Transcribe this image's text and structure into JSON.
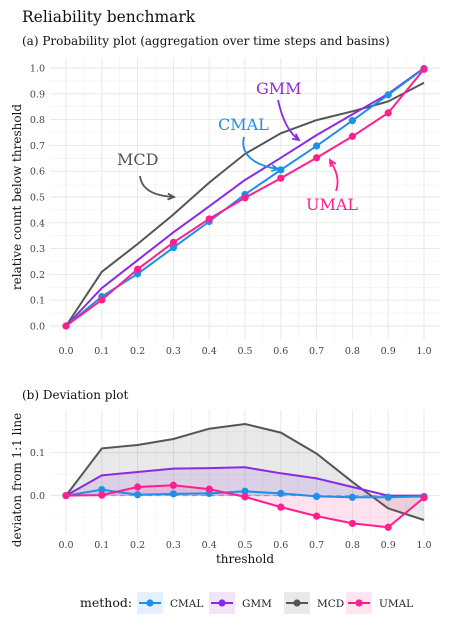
{
  "title": "Reliability benchmark",
  "colors": {
    "CMAL": "#1f8fe8",
    "GMM": "#8a2be2",
    "MCD": "#555555",
    "UMAL": "#ff1f8e"
  },
  "legend": {
    "title": "method:",
    "position": "bottom"
  },
  "chart_data": [
    {
      "type": "line",
      "title": "(a) Probability plot (aggregation over time steps and basins)",
      "xlabel": "",
      "ylabel": "relative count below threshold",
      "x": [
        0.0,
        0.1,
        0.2,
        0.3,
        0.4,
        0.5,
        0.6,
        0.7,
        0.8,
        0.9,
        1.0
      ],
      "xticks": [
        "0.0",
        "0.1",
        "0.2",
        "0.3",
        "0.4",
        "0.5",
        "0.6",
        "0.7",
        "0.8",
        "0.9",
        "1.0"
      ],
      "yticks": [
        "0.0",
        "0.1",
        "0.2",
        "0.3",
        "0.4",
        "0.5",
        "0.6",
        "0.7",
        "0.8",
        "0.9",
        "1.0"
      ],
      "xlim": [
        0,
        1.0
      ],
      "ylim": [
        0,
        1.0
      ],
      "grid": true,
      "series": [
        {
          "name": "CMAL",
          "values": [
            0.0,
            0.114,
            0.202,
            0.304,
            0.405,
            0.51,
            0.605,
            0.698,
            0.796,
            0.896,
            0.998
          ],
          "markers": true
        },
        {
          "name": "GMM",
          "values": [
            0.0,
            0.147,
            0.255,
            0.363,
            0.464,
            0.566,
            0.652,
            0.74,
            0.82,
            0.9,
            1.0
          ],
          "markers": false
        },
        {
          "name": "MCD",
          "values": [
            0.0,
            0.21,
            0.318,
            0.432,
            0.556,
            0.667,
            0.747,
            0.798,
            0.832,
            0.87,
            0.943
          ],
          "markers": false
        },
        {
          "name": "UMAL",
          "values": [
            0.0,
            0.101,
            0.22,
            0.324,
            0.415,
            0.497,
            0.573,
            0.652,
            0.735,
            0.826,
            0.995
          ],
          "markers": true
        }
      ],
      "annotations": [
        {
          "text": "MCD",
          "series": "MCD"
        },
        {
          "text": "CMAL",
          "series": "CMAL"
        },
        {
          "text": "GMM",
          "series": "GMM"
        },
        {
          "text": "UMAL",
          "series": "UMAL"
        }
      ]
    },
    {
      "type": "area",
      "title": "(b) Deviation plot",
      "xlabel": "threshold",
      "ylabel": "deviaton from 1:1 line",
      "x": [
        0.0,
        0.1,
        0.2,
        0.3,
        0.4,
        0.5,
        0.6,
        0.7,
        0.8,
        0.9,
        1.0
      ],
      "xticks": [
        "0.0",
        "0.1",
        "0.2",
        "0.3",
        "0.4",
        "0.5",
        "0.6",
        "0.7",
        "0.8",
        "0.9",
        "1.0"
      ],
      "yticks": [
        "0.0",
        "0.1"
      ],
      "xlim": [
        0,
        1.0
      ],
      "ylim": [
        -0.085,
        0.195
      ],
      "reference_line": 0.0,
      "grid": true,
      "series": [
        {
          "name": "CMAL",
          "values": [
            0.0,
            0.014,
            0.002,
            0.004,
            0.005,
            0.01,
            0.005,
            -0.002,
            -0.004,
            -0.004,
            -0.002
          ],
          "markers": true
        },
        {
          "name": "GMM",
          "values": [
            0.0,
            0.047,
            0.055,
            0.063,
            0.064,
            0.066,
            0.052,
            0.04,
            0.02,
            0.0,
            0.0
          ],
          "markers": false
        },
        {
          "name": "MCD",
          "values": [
            0.0,
            0.11,
            0.118,
            0.132,
            0.156,
            0.167,
            0.147,
            0.098,
            0.032,
            -0.03,
            -0.057
          ],
          "markers": false
        },
        {
          "name": "UMAL",
          "values": [
            0.0,
            0.001,
            0.02,
            0.024,
            0.015,
            -0.003,
            -0.027,
            -0.048,
            -0.065,
            -0.074,
            -0.005
          ],
          "markers": true
        }
      ]
    }
  ]
}
